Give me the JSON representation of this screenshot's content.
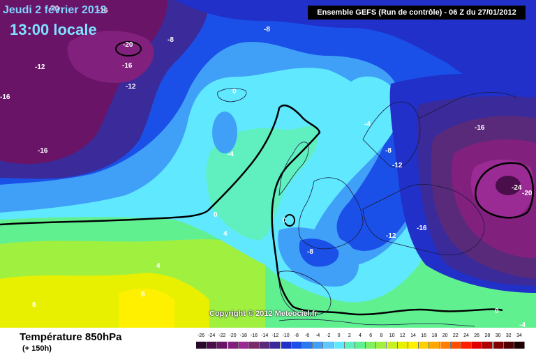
{
  "header": {
    "date": "Jeudi 2 février 2012",
    "local_time": "13:00 locale",
    "run_info": "Ensemble GEFS (Run de contrôle)  -  06 Z du 27/01/2012"
  },
  "copyright": "Copyright © 2012 Meteociel.fr",
  "footer": {
    "parameter": "Température 850hPa",
    "lead_time": "(+ 150h)"
  },
  "legend": {
    "values": [
      "-26",
      "-24",
      "-22",
      "-20",
      "-18",
      "-16",
      "-14",
      "-12",
      "-10",
      "-8",
      "-6",
      "-4",
      "-2",
      "0",
      "2",
      "4",
      "6",
      "8",
      "10",
      "12",
      "14",
      "16",
      "18",
      "20",
      "22",
      "24",
      "26",
      "28",
      "30",
      "32",
      "34"
    ],
    "colors": [
      "#2a0a2a",
      "#4a0f4a",
      "#6a1468",
      "#82207e",
      "#9a2a94",
      "#7a2a6a",
      "#5a2a7a",
      "#3a2a9a",
      "#2030c8",
      "#1a50e8",
      "#2a78f0",
      "#40a0f8",
      "#60c8ff",
      "#60e8ff",
      "#60f0c0",
      "#60f090",
      "#80f060",
      "#a0f040",
      "#c8f020",
      "#e8f000",
      "#fff000",
      "#ffd000",
      "#ffa800",
      "#ff8000",
      "#ff5000",
      "#ff2000",
      "#e00000",
      "#b00000",
      "#800000",
      "#500000",
      "#200000"
    ]
  },
  "isotherm_labels": [
    {
      "text": "-20",
      "color": "#ffffff"
    },
    {
      "text": "-16",
      "color": "#ffffff"
    },
    {
      "text": "-20",
      "color": "#ffffff"
    },
    {
      "text": "-12",
      "color": "#ffffff"
    },
    {
      "text": "-16",
      "color": "#ffffff"
    },
    {
      "text": "-12",
      "color": "#ffffff"
    },
    {
      "text": "-16",
      "color": "#ffffff"
    },
    {
      "text": "-16",
      "color": "#ffffff"
    },
    {
      "text": "-8",
      "color": "#ffffff"
    },
    {
      "text": "-8",
      "color": "#ffffff"
    },
    {
      "text": "0",
      "color": "#ffffff"
    },
    {
      "text": "-4",
      "color": "#ffffff"
    },
    {
      "text": "-4",
      "color": "#ffffff"
    },
    {
      "text": "-8",
      "color": "#ffffff"
    },
    {
      "text": "-12",
      "color": "#ffffff"
    },
    {
      "text": "-16",
      "color": "#ffffff"
    },
    {
      "text": "-24",
      "color": "#ffffff"
    },
    {
      "text": "-20",
      "color": "#ffffff"
    },
    {
      "text": "0",
      "color": "#ffffff"
    },
    {
      "text": "0",
      "color": "#ffffff"
    },
    {
      "text": "4",
      "color": "#ffffff"
    },
    {
      "text": "-8",
      "color": "#ffffff"
    },
    {
      "text": "-12",
      "color": "#ffffff"
    },
    {
      "text": "-16",
      "color": "#ffffff"
    },
    {
      "text": "4",
      "color": "#ffffff"
    },
    {
      "text": "8",
      "color": "#ffffff"
    },
    {
      "text": "8",
      "color": "#ffffff"
    },
    {
      "text": "0",
      "color": "#ffffff"
    },
    {
      "text": "-4",
      "color": "#ffffff"
    }
  ]
}
